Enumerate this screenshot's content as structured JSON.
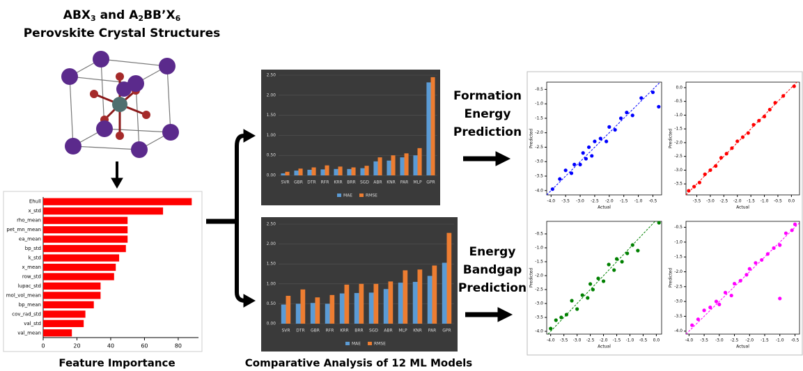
{
  "header": {
    "formula": [
      "ABX",
      "3",
      " and A",
      "2",
      "BB’X",
      "6"
    ],
    "subtitle": "Perovskite Crystal Structures"
  },
  "captions": {
    "feature": "Feature Importance",
    "comparative": "Comparative Analysis of 12 ML Models",
    "formation": [
      "Formation",
      "Energy",
      "Prediction"
    ],
    "bandgap": [
      "Energy",
      "Bandgap",
      "Prediction"
    ]
  },
  "chart_data": [
    {
      "type": "barh",
      "title": "Feature Importance",
      "categories": [
        "Ehull",
        "x_std",
        "rho_mean",
        "pet_mn_mean",
        "ea_mean",
        "bp_std",
        "k_std",
        "x_mean",
        "row_std",
        "lupac_std",
        "mol_vol_mean",
        "bp_mean",
        "cov_rad_std",
        "val_std",
        "val_mean"
      ],
      "values": [
        88,
        71,
        50,
        50,
        50,
        49,
        45,
        43,
        42,
        34,
        34,
        30,
        25,
        24,
        17
      ],
      "color": "#ff0000",
      "xlim": [
        0,
        92
      ],
      "xticks": [
        0,
        20,
        40,
        60,
        80
      ]
    },
    {
      "type": "bar",
      "categories": [
        "SVR",
        "GBR",
        "DTR",
        "RFR",
        "KRR",
        "BRR",
        "SGD",
        "ABR",
        "KNR",
        "PAR",
        "MLP",
        "GPR"
      ],
      "series": [
        {
          "name": "MAE",
          "color": "#5b9bd5",
          "values": [
            0.05,
            0.12,
            0.14,
            0.15,
            0.16,
            0.16,
            0.18,
            0.35,
            0.37,
            0.45,
            0.5,
            2.32
          ]
        },
        {
          "name": "RMSE",
          "color": "#ed7d31",
          "values": [
            0.09,
            0.17,
            0.2,
            0.25,
            0.22,
            0.2,
            0.24,
            0.45,
            0.5,
            0.55,
            0.68,
            2.45
          ]
        }
      ],
      "ylim": [
        0,
        2.5
      ],
      "yticks": [
        {
          "value": 0,
          "label": "0.00"
        },
        {
          "value": 0.5,
          "label": "0.50"
        },
        {
          "value": 1,
          "label": "1.00"
        },
        {
          "value": 1.5,
          "label": "1.50"
        },
        {
          "value": 2,
          "label": "2.00"
        },
        {
          "value": 2.5,
          "label": "2.50"
        }
      ],
      "grid": true
    },
    {
      "type": "bar",
      "categories": [
        "SVR",
        "DTR",
        "GBR",
        "RFR",
        "KRR",
        "BRR",
        "SGD",
        "ABR",
        "MLP",
        "KNR",
        "PAR",
        "GPR"
      ],
      "series": [
        {
          "name": "MAE",
          "color": "#5b9bd5",
          "values": [
            0.48,
            0.5,
            0.52,
            0.5,
            0.76,
            0.77,
            0.78,
            0.87,
            1.03,
            1.05,
            1.2,
            1.53
          ]
        },
        {
          "name": "RMSE",
          "color": "#ed7d31",
          "values": [
            0.7,
            0.86,
            0.66,
            0.72,
            0.98,
            1.0,
            1.0,
            1.06,
            1.34,
            1.36,
            1.46,
            2.28
          ]
        }
      ],
      "ylim": [
        0,
        2.5
      ],
      "yticks": [
        {
          "value": 0,
          "label": "0.00"
        },
        {
          "value": 0.5,
          "label": "0.50"
        },
        {
          "value": 1,
          "label": "1.00"
        },
        {
          "value": 1.5,
          "label": "1.50"
        },
        {
          "value": 2,
          "label": "2.00"
        },
        {
          "value": 2.5,
          "label": "2.50"
        }
      ],
      "grid": true
    },
    {
      "type": "scatter",
      "xlabel": "Actual",
      "ylabel": "Predicted",
      "color": "#0000ff",
      "diagonal": true,
      "x": [
        -3.95,
        -3.7,
        -3.5,
        -3.3,
        -3.2,
        -3.0,
        -2.9,
        -2.8,
        -2.7,
        -2.6,
        -2.5,
        -2.3,
        -2.1,
        -2.0,
        -1.8,
        -1.6,
        -1.4,
        -1.2,
        -0.9,
        -0.5,
        -0.3
      ],
      "y": [
        -3.95,
        -3.6,
        -3.3,
        -3.4,
        -3.1,
        -3.1,
        -2.7,
        -2.9,
        -2.5,
        -2.8,
        -2.3,
        -2.2,
        -2.3,
        -1.8,
        -1.9,
        -1.5,
        -1.3,
        -1.4,
        -0.8,
        -0.6,
        -1.1
      ],
      "xlim": [
        -4.15,
        -0.2
      ],
      "ylim": [
        -4.15,
        -0.25
      ],
      "xticks": [
        {
          "value": -4,
          "label": "-4.0"
        },
        -3.5,
        {
          "value": -3,
          "label": "-3.0"
        },
        -2.5,
        {
          "value": -2,
          "label": "-2.0"
        },
        -1.5,
        {
          "value": -1,
          "label": "-1.0"
        },
        -0.5
      ],
      "yticks": [
        {
          "value": -4,
          "label": "-4.0"
        },
        -3.5,
        {
          "value": -3,
          "label": "-3.0"
        },
        -2.5,
        {
          "value": -2,
          "label": "-2.0"
        },
        -1.5,
        {
          "value": -1,
          "label": "-1.0"
        },
        -0.5
      ]
    },
    {
      "type": "scatter",
      "xlabel": "Actual",
      "ylabel": "Predicted",
      "color": "#ff0000",
      "diagonal": true,
      "x": [
        -3.8,
        -3.6,
        -3.4,
        -3.2,
        -3.0,
        -2.8,
        -2.6,
        -2.4,
        -2.2,
        -2.0,
        -1.8,
        -1.6,
        -1.4,
        -1.2,
        -1.0,
        -0.8,
        -0.6,
        -0.3,
        0.1
      ],
      "y": [
        -3.75,
        -3.6,
        -3.45,
        -3.15,
        -3.0,
        -2.85,
        -2.55,
        -2.4,
        -2.2,
        -1.95,
        -1.8,
        -1.65,
        -1.35,
        -1.2,
        -1.05,
        -0.8,
        -0.55,
        -0.3,
        0.05
      ],
      "xlim": [
        -3.9,
        0.3
      ],
      "ylim": [
        -3.9,
        0.2
      ],
      "xticks": [
        -3.5,
        {
          "value": -3,
          "label": "-3.0"
        },
        -2.5,
        {
          "value": -2,
          "label": "-2.0"
        },
        -1.5,
        {
          "value": -1,
          "label": "-1.0"
        },
        -0.5,
        {
          "value": 0,
          "label": "0.0"
        }
      ],
      "yticks": [
        -3.5,
        {
          "value": -3,
          "label": "-3.0"
        },
        -2.5,
        {
          "value": -2,
          "label": "-2.0"
        },
        -1.5,
        {
          "value": -1,
          "label": "-1.0"
        },
        -0.5,
        {
          "value": 0,
          "label": "0.0"
        }
      ]
    },
    {
      "type": "scatter",
      "xlabel": "Actual",
      "ylabel": "Predicted",
      "color": "#008000",
      "diagonal": true,
      "x": [
        -4.0,
        -3.8,
        -3.6,
        -3.4,
        -3.2,
        -3.0,
        -2.8,
        -2.6,
        -2.5,
        -2.4,
        -2.2,
        -2.0,
        -1.8,
        -1.6,
        -1.5,
        -1.3,
        -1.1,
        -0.9,
        -0.7,
        0.1
      ],
      "y": [
        -3.9,
        -3.6,
        -3.5,
        -3.4,
        -2.9,
        -3.2,
        -2.7,
        -2.8,
        -2.3,
        -2.5,
        -2.1,
        -2.2,
        -1.6,
        -1.8,
        -1.4,
        -1.5,
        -1.2,
        -0.9,
        -1.1,
        -0.1
      ],
      "xlim": [
        -4.15,
        0.2
      ],
      "ylim": [
        -4.1,
        -0.05
      ],
      "xticks": [
        {
          "value": -4,
          "label": "-4.0"
        },
        -3.5,
        {
          "value": -3,
          "label": "-3.0"
        },
        -2.5,
        {
          "value": -2,
          "label": "-2.0"
        },
        -1.5,
        {
          "value": -1,
          "label": "-1.0"
        },
        -0.5,
        {
          "value": 0,
          "label": "0.0"
        }
      ],
      "yticks": [
        {
          "value": -4,
          "label": "-4.0"
        },
        -3.5,
        {
          "value": -3,
          "label": "-3.0"
        },
        -2.5,
        {
          "value": -2,
          "label": "-2.0"
        },
        -1.5,
        {
          "value": -1,
          "label": "-1.0"
        },
        -0.5
      ]
    },
    {
      "type": "scatter",
      "xlabel": "Actual",
      "ylabel": "Predicted",
      "color": "#ff00ff",
      "diagonal": true,
      "x": [
        -3.9,
        -3.7,
        -3.5,
        -3.3,
        -3.1,
        -3.0,
        -2.8,
        -2.6,
        -2.5,
        -2.3,
        -2.1,
        -2.0,
        -1.8,
        -1.6,
        -1.4,
        -1.2,
        -1.0,
        -0.8,
        -0.6,
        -0.5,
        -1.0
      ],
      "y": [
        -3.8,
        -3.6,
        -3.3,
        -3.2,
        -3.0,
        -3.1,
        -2.7,
        -2.8,
        -2.4,
        -2.3,
        -2.1,
        -1.9,
        -1.7,
        -1.6,
        -1.4,
        -1.2,
        -1.1,
        -0.7,
        -0.6,
        -0.4,
        -2.9
      ],
      "xlim": [
        -4.1,
        -0.35
      ],
      "ylim": [
        -4.1,
        -0.3
      ],
      "xticks": [
        {
          "value": -4,
          "label": "-4.0"
        },
        -3.5,
        {
          "value": -3,
          "label": "-3.0"
        },
        -2.5,
        {
          "value": -2,
          "label": "-2.0"
        },
        -1.5,
        {
          "value": -1,
          "label": "-1.0"
        },
        -0.5
      ],
      "yticks": [
        {
          "value": -4,
          "label": "-4.0"
        },
        -3.5,
        {
          "value": -3,
          "label": "-3.0"
        },
        -2.5,
        {
          "value": -2,
          "label": "-2.0"
        },
        -1.5,
        {
          "value": -1,
          "label": "-1.0"
        },
        -0.5
      ]
    }
  ]
}
